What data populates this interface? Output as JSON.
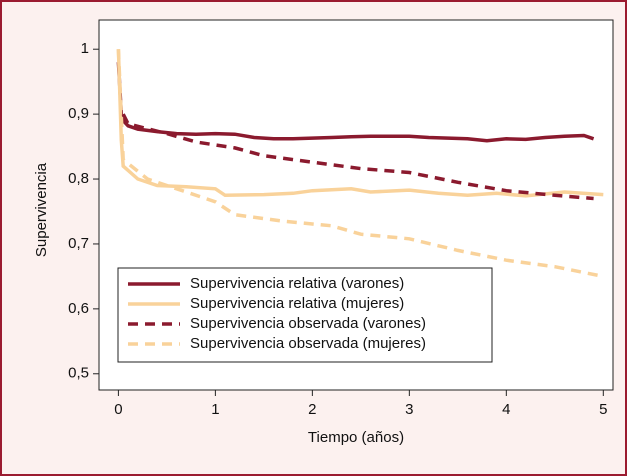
{
  "chart_data": {
    "type": "line",
    "y_label": "Supervivencia",
    "x_label": "Tiempo (años)",
    "xlim": [
      -0.2,
      5.1
    ],
    "xticks": [
      0,
      1,
      2,
      3,
      4,
      5
    ],
    "ylim": [
      0.475,
      1.045
    ],
    "yticks": [
      {
        "value": 0.5,
        "label": "0,5"
      },
      {
        "value": 0.6,
        "label": "0,6"
      },
      {
        "value": 0.7,
        "label": "0,7"
      },
      {
        "value": 0.8,
        "label": "0,8"
      },
      {
        "value": 0.9,
        "label": "0,9"
      },
      1
    ],
    "legend": "lower-left",
    "series": [
      {
        "name": "Supervivencia relativa (varones)",
        "color": "#8b1a2e",
        "dashed": false,
        "x": [
          0,
          0.03,
          0.05,
          0.1,
          0.2,
          0.4,
          0.6,
          0.8,
          1,
          1.2,
          1.4,
          1.6,
          1.8,
          2,
          2.2,
          2.4,
          2.6,
          2.8,
          3,
          3.2,
          3.4,
          3.6,
          3.8,
          4,
          4.2,
          4.4,
          4.6,
          4.8,
          4.9
        ],
        "values": [
          0.98,
          0.9,
          0.89,
          0.882,
          0.877,
          0.873,
          0.87,
          0.869,
          0.87,
          0.869,
          0.864,
          0.862,
          0.862,
          0.863,
          0.864,
          0.865,
          0.866,
          0.866,
          0.866,
          0.864,
          0.863,
          0.862,
          0.859,
          0.862,
          0.861,
          0.864,
          0.866,
          0.867,
          0.862
        ]
      },
      {
        "name": "Supervivencia relativa (mujeres)",
        "color": "#f9d29a",
        "dashed": false,
        "x": [
          0,
          0.03,
          0.05,
          0.2,
          0.4,
          0.7,
          1,
          1.1,
          1.5,
          1.8,
          2,
          2.4,
          2.6,
          3,
          3.3,
          3.6,
          3.9,
          4.2,
          4.6,
          5
        ],
        "values": [
          1.0,
          0.86,
          0.82,
          0.8,
          0.79,
          0.788,
          0.785,
          0.775,
          0.776,
          0.778,
          0.782,
          0.785,
          0.78,
          0.783,
          0.778,
          0.775,
          0.778,
          0.774,
          0.78,
          0.776
        ]
      },
      {
        "name": "Supervivencia observada (varones)",
        "color": "#8b1a2e",
        "dashed": true,
        "x": [
          0.05,
          0.1,
          0.5,
          0.8,
          1.2,
          1.5,
          2,
          2.5,
          3,
          3.5,
          4,
          4.5,
          4.9
        ],
        "values": [
          0.9,
          0.885,
          0.87,
          0.857,
          0.848,
          0.836,
          0.826,
          0.816,
          0.81,
          0.795,
          0.782,
          0.775,
          0.77
        ]
      },
      {
        "name": "Supervivencia observada (mujeres)",
        "color": "#f9d29a",
        "dashed": true,
        "x": [
          0,
          0.05,
          0.3,
          0.5,
          1,
          1.2,
          1.7,
          2.2,
          2.5,
          3,
          3.5,
          4,
          4.5,
          5
        ],
        "values": [
          1.0,
          0.83,
          0.8,
          0.79,
          0.765,
          0.745,
          0.735,
          0.728,
          0.715,
          0.708,
          0.69,
          0.675,
          0.665,
          0.65
        ]
      }
    ]
  }
}
